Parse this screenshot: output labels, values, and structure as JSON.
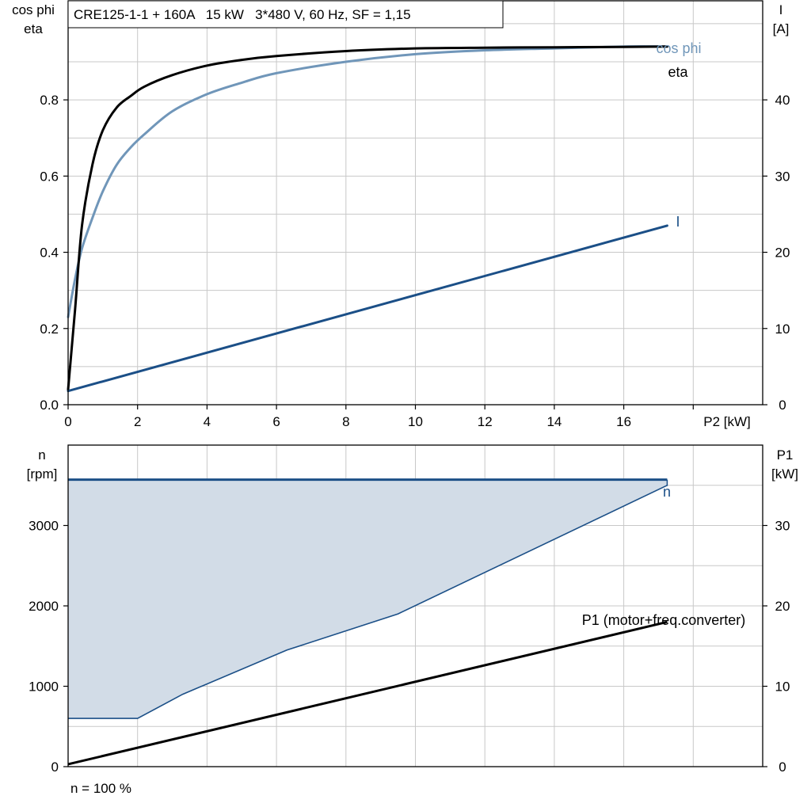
{
  "chart_data": [
    {
      "type": "line",
      "title": "CRE125-1-1 + 160A   15 kW   3*480 V, 60 Hz, SF = 1,15",
      "ylabel_left": [
        "cos phi",
        "eta"
      ],
      "ylabel_right": [
        "I",
        "[A]"
      ],
      "xlabel": "P2 [kW]",
      "xlim": [
        0,
        20
      ],
      "ylim_left": [
        0,
        1.06
      ],
      "ylim_right": [
        0,
        53
      ],
      "x_ticks": [
        "0",
        "2",
        "4",
        "6",
        "8",
        "10",
        "12",
        "14",
        "16"
      ],
      "y_ticks_left": [
        "0.0",
        "0.2",
        "0.4",
        "0.6",
        "0.8"
      ],
      "y_ticks_right": [
        "0",
        "10",
        "20",
        "30",
        "40"
      ],
      "grid": true,
      "series": [
        {
          "name": "eta",
          "axis": "left",
          "color": "#000000",
          "x": [
            0,
            0.2,
            0.4,
            0.7,
            1.0,
            1.4,
            1.8,
            2.2,
            3.0,
            4.0,
            5.0,
            6.0,
            8.0,
            10.0,
            12.0,
            14.0,
            16.0,
            17.25
          ],
          "y": [
            0.04,
            0.25,
            0.47,
            0.63,
            0.72,
            0.78,
            0.81,
            0.835,
            0.865,
            0.89,
            0.905,
            0.915,
            0.928,
            0.935,
            0.937,
            0.938,
            0.939,
            0.94
          ]
        },
        {
          "name": "cos phi",
          "axis": "left",
          "color": "#7096b9",
          "x": [
            0,
            0.2,
            0.4,
            0.7,
            1.0,
            1.4,
            1.8,
            2.2,
            3.0,
            4.0,
            5.0,
            6.0,
            8.0,
            10.0,
            12.0,
            14.0,
            16.0,
            17.25
          ],
          "y": [
            0.23,
            0.33,
            0.41,
            0.49,
            0.56,
            0.63,
            0.675,
            0.71,
            0.77,
            0.815,
            0.845,
            0.87,
            0.9,
            0.92,
            0.93,
            0.935,
            0.94,
            0.94
          ]
        },
        {
          "name": "I",
          "axis": "right",
          "color": "#1b4f87",
          "x": [
            0,
            17.25
          ],
          "y": [
            1.8,
            23.5
          ]
        }
      ]
    },
    {
      "type": "area",
      "ylabel_left": [
        "n",
        "[rpm]"
      ],
      "ylabel_right": [
        "P1",
        "[kW]"
      ],
      "footer": "n = 100 %",
      "xlim": [
        0,
        20
      ],
      "ylim_left": [
        0,
        4000
      ],
      "ylim_right": [
        0,
        40
      ],
      "y_ticks_left": [
        "0",
        "1000",
        "2000",
        "3000"
      ],
      "y_ticks_right": [
        "0",
        "10",
        "20",
        "30"
      ],
      "grid": true,
      "series": [
        {
          "name": "n",
          "axis": "left",
          "color": "#1b4f87",
          "x": [
            0,
            17.25
          ],
          "y": [
            3570,
            3570
          ]
        },
        {
          "name": "",
          "axis": "left",
          "color": "#1b4f87",
          "x": [
            0,
            2.0,
            3.3,
            6.3,
            9.5,
            17.25
          ],
          "y": [
            600,
            600,
            900,
            1450,
            1900,
            3500
          ]
        },
        {
          "name": "P1 (motor+freq.converter)",
          "axis": "right",
          "color": "#000000",
          "x": [
            0,
            17.25
          ],
          "y": [
            0.3,
            18.0
          ]
        }
      ],
      "fill": {
        "color": "#d2dce7",
        "between": "n and lower speed curve"
      }
    }
  ]
}
